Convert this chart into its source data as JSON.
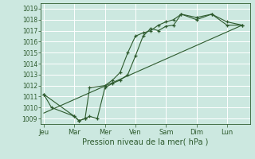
{
  "background_color": "#cce8e0",
  "grid_color": "#ffffff",
  "line_color": "#2d5a2d",
  "xlabel": "Pression niveau de la mer( hPa )",
  "ylim": [
    1008.5,
    1019.5
  ],
  "yticks": [
    1009,
    1010,
    1011,
    1012,
    1013,
    1014,
    1015,
    1016,
    1017,
    1018,
    1019
  ],
  "day_labels": [
    "Jeu",
    "Mar",
    "Mer",
    "Ven",
    "Sam",
    "Dim",
    "Lun"
  ],
  "day_positions": [
    0,
    2,
    4,
    6,
    8,
    10,
    12
  ],
  "xlim": [
    -0.2,
    13.5
  ],
  "series1_x": [
    0,
    0.5,
    2.0,
    2.3,
    2.7,
    3.0,
    3.5,
    4.0,
    4.5,
    5.0,
    5.5,
    6.0,
    6.5,
    7.0,
    7.5,
    8.0,
    8.5,
    9.0,
    10.0,
    11.0,
    12.0,
    13.0
  ],
  "series1_y": [
    1011.2,
    1010.0,
    1009.2,
    1008.8,
    1009.0,
    1009.2,
    1009.0,
    1011.8,
    1012.2,
    1012.5,
    1013.0,
    1014.7,
    1016.5,
    1017.2,
    1017.0,
    1017.4,
    1017.5,
    1018.5,
    1018.0,
    1018.5,
    1017.8,
    1017.5
  ],
  "series2_x": [
    0,
    2.0,
    2.3,
    2.7,
    3.0,
    4.0,
    4.5,
    5.0,
    5.5,
    6.0,
    6.5,
    7.0,
    7.5,
    8.0,
    8.5,
    9.0,
    10.0,
    11.0,
    12.0,
    13.0
  ],
  "series2_y": [
    1011.2,
    1009.2,
    1008.8,
    1009.0,
    1011.8,
    1012.0,
    1012.5,
    1013.2,
    1015.0,
    1016.5,
    1016.8,
    1017.0,
    1017.5,
    1017.8,
    1018.0,
    1018.5,
    1018.2,
    1018.5,
    1017.5,
    1017.5
  ],
  "trend_x": [
    0,
    13.0
  ],
  "trend_y": [
    1009.5,
    1017.5
  ],
  "xlabel_fontsize": 7,
  "ytick_fontsize": 5.5,
  "xtick_fontsize": 6.0
}
